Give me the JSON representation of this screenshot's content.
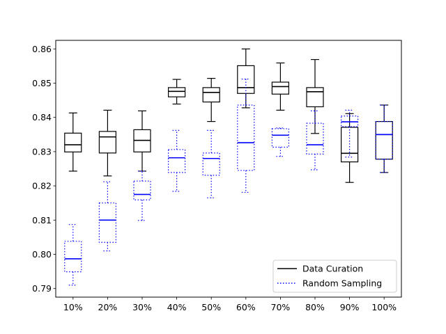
{
  "chart_data": {
    "type": "box",
    "categories": [
      "10%",
      "20%",
      "30%",
      "40%",
      "50%",
      "60%",
      "70%",
      "80%",
      "90%",
      "100%"
    ],
    "ylim": [
      0.7875,
      0.8625
    ],
    "yticks": [
      "0.79",
      "0.80",
      "0.81",
      "0.82",
      "0.83",
      "0.84",
      "0.85",
      "0.86"
    ],
    "legend_position": "bottom-right",
    "series": [
      {
        "name": "Data Curation",
        "color": "#000000",
        "line_style": "solid",
        "boxes": [
          {
            "min": 0.8243,
            "q1": 0.8299,
            "median": 0.832,
            "q3": 0.8354,
            "max": 0.8413
          },
          {
            "min": 0.8229,
            "q1": 0.8296,
            "median": 0.8343,
            "q3": 0.8359,
            "max": 0.8421
          },
          {
            "min": 0.8243,
            "q1": 0.8299,
            "median": 0.8333,
            "q3": 0.8364,
            "max": 0.8419
          },
          {
            "min": 0.8439,
            "q1": 0.846,
            "median": 0.8476,
            "q3": 0.8487,
            "max": 0.8511
          },
          {
            "min": 0.8388,
            "q1": 0.8445,
            "median": 0.8473,
            "q3": 0.8487,
            "max": 0.8514
          },
          {
            "min": 0.8428,
            "q1": 0.847,
            "median": 0.8487,
            "q3": 0.8551,
            "max": 0.86
          },
          {
            "min": 0.8421,
            "q1": 0.8468,
            "median": 0.849,
            "q3": 0.8503,
            "max": 0.8559
          },
          {
            "min": 0.8353,
            "q1": 0.8431,
            "median": 0.8475,
            "q3": 0.8487,
            "max": 0.8569
          },
          {
            "min": 0.821,
            "q1": 0.827,
            "median": 0.8295,
            "q3": 0.8371,
            "max": 0.8411
          },
          {
            "min": 0.8239,
            "q1": 0.8278,
            "median": 0.835,
            "q3": 0.8388,
            "max": 0.8436
          }
        ]
      },
      {
        "name": "Random Sampling",
        "color": "#0000ff",
        "line_style": "dotted",
        "boxes": [
          {
            "min": 0.791,
            "q1": 0.7949,
            "median": 0.7987,
            "q3": 0.8038,
            "max": 0.8087
          },
          {
            "min": 0.801,
            "q1": 0.8035,
            "median": 0.81,
            "q3": 0.815,
            "max": 0.8212
          },
          {
            "min": 0.8099,
            "q1": 0.8159,
            "median": 0.8175,
            "q3": 0.8214,
            "max": 0.8243
          },
          {
            "min": 0.8184,
            "q1": 0.8239,
            "median": 0.8282,
            "q3": 0.8306,
            "max": 0.8362
          },
          {
            "min": 0.8165,
            "q1": 0.8231,
            "median": 0.828,
            "q3": 0.8296,
            "max": 0.8362
          },
          {
            "min": 0.8181,
            "q1": 0.8245,
            "median": 0.8326,
            "q3": 0.8436,
            "max": 0.8512
          },
          {
            "min": 0.8286,
            "q1": 0.8313,
            "median": 0.8348,
            "q3": 0.8367,
            "max": 0.8369
          },
          {
            "min": 0.8247,
            "q1": 0.8293,
            "median": 0.832,
            "q3": 0.8383,
            "max": 0.8419
          },
          {
            "min": 0.8284,
            "q1": 0.8373,
            "median": 0.8387,
            "q3": 0.8404,
            "max": 0.8421
          },
          {
            "min": 0.8239,
            "q1": 0.8278,
            "median": 0.835,
            "q3": 0.8388,
            "max": 0.8436
          }
        ]
      }
    ]
  }
}
